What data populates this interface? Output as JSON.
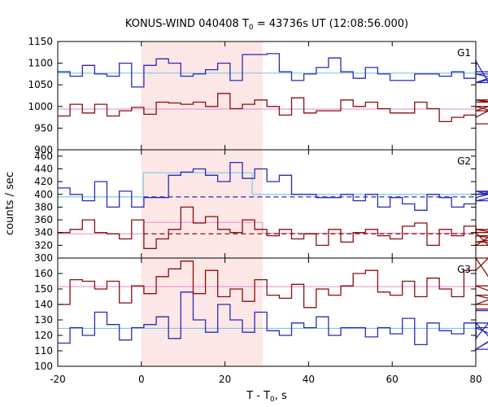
{
  "chart_data": {
    "type": "line",
    "title": {
      "main": "KONUS-WIND 040408 T",
      "sub": "0",
      "rest": " = 43736s UT (12:08:56.000)"
    },
    "xlabel": {
      "main": "T - T",
      "sub": "0",
      "rest": ", s"
    },
    "ylabel": "counts / sec",
    "xlim": [
      -20,
      80
    ],
    "xticks": [
      -20,
      0,
      20,
      40,
      60,
      80
    ],
    "x_step": 2.944,
    "x_start": -20,
    "shaded_interval": [
      0,
      29
    ],
    "colors": {
      "shade": "#fde6e6",
      "blue": "#2b2bb5",
      "red": "#8b0f0f",
      "cyan": "#7ec8e8",
      "pink": "#e8a0d8"
    },
    "panels": [
      {
        "label": "G1",
        "ylim": [
          900,
          1150
        ],
        "yticks": [
          900,
          950,
          1000,
          1050,
          1100,
          1150
        ],
        "series": [
          {
            "color": "blue",
            "values": [
              1080,
              1070,
              1095,
              1075,
              1070,
              1100,
              1045,
              1095,
              1110,
              1100,
              1070,
              1075,
              1085,
              1100,
              1060,
              1120,
              1120,
              1122,
              1080,
              1060,
              1075,
              1090,
              1112,
              1080,
              1065,
              1090,
              1075,
              1060,
              1060,
              1075,
              1075,
              1070,
              1080,
              1065,
              1105,
              1055,
              1075,
              1055,
              1080,
              1080
            ]
          },
          {
            "color": "red",
            "values": [
              978,
              1005,
              985,
              1005,
              978,
              990,
              998,
              982,
              1010,
              1008,
              1005,
              1010,
              1000,
              1030,
              995,
              1005,
              1015,
              1000,
              980,
              1020,
              985,
              990,
              990,
              1015,
              1000,
              1010,
              995,
              985,
              985,
              1010,
              995,
              965,
              975,
              980,
              975,
              990,
              1010,
              1015,
              1000,
              960
            ]
          }
        ],
        "levels": [
          {
            "color": "cyan",
            "style": "solid",
            "x": [
              -20,
              80
            ],
            "y": 1077
          },
          {
            "color": "pink",
            "style": "solid",
            "x": [
              -20,
              80
            ],
            "y": 994
          }
        ]
      },
      {
        "label": "G2",
        "ylim": [
          300,
          470
        ],
        "yticks": [
          300,
          320,
          340,
          360,
          380,
          400,
          420,
          440,
          460
        ],
        "series": [
          {
            "color": "blue",
            "values": [
              410,
              400,
              390,
              420,
              380,
              405,
              380,
              395,
              395,
              430,
              435,
              440,
              430,
              420,
              450,
              425,
              440,
              420,
              430,
              400,
              400,
              395,
              395,
              400,
              390,
              400,
              380,
              395,
              385,
              375,
              400,
              395,
              380,
              385,
              395,
              400,
              405,
              390,
              405,
              400
            ]
          },
          {
            "color": "red",
            "values": [
              340,
              345,
              360,
              340,
              338,
              330,
              360,
              315,
              330,
              345,
              380,
              355,
              365,
              345,
              340,
              360,
              345,
              335,
              345,
              330,
              338,
              320,
              345,
              325,
              340,
              345,
              335,
              330,
              350,
              355,
              320,
              345,
              335,
              350,
              340,
              320,
              345,
              335,
              325,
              340
            ]
          }
        ],
        "levels": [
          {
            "color": "cyan",
            "style": "solid",
            "x": [
              -20,
              0.5
            ],
            "y": 396
          },
          {
            "color": "cyan",
            "style": "solid",
            "x": [
              0.5,
              26.5
            ],
            "y": 434
          },
          {
            "color": "cyan",
            "style": "solid",
            "x": [
              26.5,
              80
            ],
            "y": 400
          },
          {
            "color": "blue",
            "style": "dashed",
            "x": [
              0.5,
              80
            ],
            "y": 396
          },
          {
            "color": "pink",
            "style": "solid",
            "x": [
              -20,
              0.5
            ],
            "y": 338
          },
          {
            "color": "pink",
            "style": "solid",
            "x": [
              0.5,
              29
            ],
            "y": 356
          },
          {
            "color": "pink",
            "style": "solid",
            "x": [
              29,
              80
            ],
            "y": 339
          },
          {
            "color": "red",
            "style": "dashed",
            "x": [
              0.5,
              80
            ],
            "y": 338
          }
        ]
      },
      {
        "label": "G3",
        "ylim": [
          100,
          170
        ],
        "yticks": [
          100,
          110,
          120,
          130,
          140,
          150,
          160,
          170
        ],
        "series": [
          {
            "color": "blue",
            "values": [
              115,
              125,
              120,
              135,
              127,
              117,
              125,
              127,
              132,
              118,
              148,
              130,
              122,
              140,
              130,
              122,
              135,
              123,
              120,
              128,
              125,
              132,
              120,
              125,
              125,
              119,
              125,
              121,
              131,
              114,
              128,
              123,
              121,
              128,
              118,
              128,
              111,
              125,
              111,
              136
            ]
          },
          {
            "color": "red",
            "values": [
              140,
              156,
              155,
              150,
              155,
              141,
              152,
              147,
              158,
              163,
              168,
              147,
              162,
              145,
              150,
              142,
              156,
              146,
              144,
              153,
              138,
              150,
              146,
              152,
              160,
              162,
              148,
              146,
              155,
              145,
              157,
              150,
              145,
              162,
              162,
              170,
              146,
              140,
              152,
              137
            ]
          }
        ],
        "levels": [
          {
            "color": "cyan",
            "style": "solid",
            "x": [
              -20,
              80
            ],
            "y": 124.5
          },
          {
            "color": "pink",
            "style": "solid",
            "x": [
              -20,
              80
            ],
            "y": 151.5
          }
        ]
      }
    ]
  }
}
